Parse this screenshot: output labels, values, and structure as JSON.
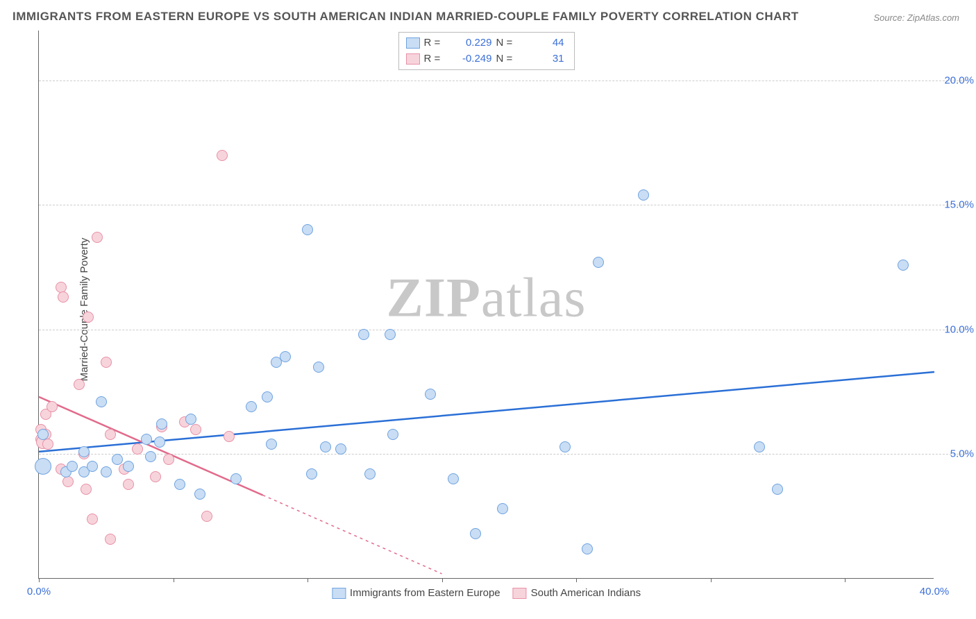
{
  "title": "IMMIGRANTS FROM EASTERN EUROPE VS SOUTH AMERICAN INDIAN MARRIED-COUPLE FAMILY POVERTY CORRELATION CHART",
  "source": "Source: ZipAtlas.com",
  "ylabel": "Married-Couple Family Poverty",
  "watermark_a": "ZIP",
  "watermark_b": "atlas",
  "chart": {
    "type": "scatter",
    "background_color": "#ffffff",
    "grid_color": "#cccccc",
    "axis_color": "#666666",
    "tick_label_color": "#3b6fd8",
    "xlim": [
      0,
      40
    ],
    "ylim": [
      0,
      22
    ],
    "xticks": [
      {
        "x": 0,
        "label": "0.0%"
      },
      {
        "x": 40,
        "label": "40.0%"
      }
    ],
    "xtick_marks": [
      0,
      6,
      12,
      18,
      24,
      30,
      36
    ],
    "yticks": [
      {
        "y": 5,
        "label": "5.0%"
      },
      {
        "y": 10,
        "label": "10.0%"
      },
      {
        "y": 15,
        "label": "15.0%"
      },
      {
        "y": 20,
        "label": "20.0%"
      }
    ],
    "series": [
      {
        "name": "Immigrants from Eastern Europe",
        "fill": "#c9ddf4",
        "stroke": "#6fa3e0",
        "marker_size": 16,
        "r_value": "0.229",
        "n_value": "44",
        "trend": {
          "x1": 0,
          "y1": 5.1,
          "x2": 40,
          "y2": 8.3,
          "color": "#2a6fd6",
          "dash_from_x": null
        },
        "points": [
          {
            "x": 0.2,
            "y": 4.5,
            "s": 24
          },
          {
            "x": 0.2,
            "y": 5.8
          },
          {
            "x": 1.2,
            "y": 4.3
          },
          {
            "x": 1.5,
            "y": 4.5
          },
          {
            "x": 2.0,
            "y": 4.3
          },
          {
            "x": 2.0,
            "y": 5.1
          },
          {
            "x": 2.4,
            "y": 4.5
          },
          {
            "x": 2.8,
            "y": 7.1
          },
          {
            "x": 3.0,
            "y": 4.3
          },
          {
            "x": 3.5,
            "y": 4.8
          },
          {
            "x": 4.0,
            "y": 4.5
          },
          {
            "x": 4.8,
            "y": 5.6
          },
          {
            "x": 5.0,
            "y": 4.9
          },
          {
            "x": 5.4,
            "y": 5.5
          },
          {
            "x": 5.5,
            "y": 6.2
          },
          {
            "x": 6.3,
            "y": 3.8
          },
          {
            "x": 6.8,
            "y": 6.4
          },
          {
            "x": 7.2,
            "y": 3.4
          },
          {
            "x": 8.8,
            "y": 4.0
          },
          {
            "x": 9.5,
            "y": 6.9
          },
          {
            "x": 10.2,
            "y": 7.3
          },
          {
            "x": 10.4,
            "y": 5.4
          },
          {
            "x": 10.6,
            "y": 8.7
          },
          {
            "x": 11.0,
            "y": 8.9
          },
          {
            "x": 12.0,
            "y": 14.0
          },
          {
            "x": 12.2,
            "y": 4.2
          },
          {
            "x": 12.5,
            "y": 8.5
          },
          {
            "x": 12.8,
            "y": 5.3
          },
          {
            "x": 13.5,
            "y": 5.2
          },
          {
            "x": 14.5,
            "y": 9.8
          },
          {
            "x": 14.8,
            "y": 4.2
          },
          {
            "x": 15.7,
            "y": 9.8
          },
          {
            "x": 15.8,
            "y": 5.8
          },
          {
            "x": 17.5,
            "y": 7.4
          },
          {
            "x": 18.5,
            "y": 4.0
          },
          {
            "x": 19.5,
            "y": 1.8
          },
          {
            "x": 20.7,
            "y": 2.8
          },
          {
            "x": 23.5,
            "y": 5.3
          },
          {
            "x": 24.5,
            "y": 1.2
          },
          {
            "x": 25.0,
            "y": 12.7
          },
          {
            "x": 27.0,
            "y": 15.4
          },
          {
            "x": 32.2,
            "y": 5.3
          },
          {
            "x": 33.0,
            "y": 3.6
          },
          {
            "x": 38.6,
            "y": 12.6
          }
        ]
      },
      {
        "name": "South American Indians",
        "fill": "#f7d4dc",
        "stroke": "#e890a6",
        "marker_size": 16,
        "r_value": "-0.249",
        "n_value": "31",
        "trend": {
          "x1": 0,
          "y1": 7.3,
          "x2": 18,
          "y2": 0.2,
          "color": "#e26a8b",
          "dash_from_x": 10
        },
        "points": [
          {
            "x": 0.1,
            "y": 5.6
          },
          {
            "x": 0.1,
            "y": 6.0
          },
          {
            "x": 0.2,
            "y": 5.5,
            "s": 20
          },
          {
            "x": 0.3,
            "y": 6.6
          },
          {
            "x": 0.3,
            "y": 5.8
          },
          {
            "x": 0.4,
            "y": 5.4
          },
          {
            "x": 0.6,
            "y": 6.9
          },
          {
            "x": 1.0,
            "y": 4.4
          },
          {
            "x": 1.0,
            "y": 11.7
          },
          {
            "x": 1.1,
            "y": 11.3
          },
          {
            "x": 1.3,
            "y": 3.9
          },
          {
            "x": 1.8,
            "y": 7.8
          },
          {
            "x": 2.0,
            "y": 5.0
          },
          {
            "x": 2.1,
            "y": 3.6
          },
          {
            "x": 2.2,
            "y": 10.5
          },
          {
            "x": 2.4,
            "y": 2.4
          },
          {
            "x": 2.6,
            "y": 13.7
          },
          {
            "x": 3.0,
            "y": 8.7
          },
          {
            "x": 3.2,
            "y": 5.8
          },
          {
            "x": 3.2,
            "y": 1.6
          },
          {
            "x": 3.8,
            "y": 4.4
          },
          {
            "x": 4.0,
            "y": 3.8
          },
          {
            "x": 4.4,
            "y": 5.2
          },
          {
            "x": 5.2,
            "y": 4.1
          },
          {
            "x": 5.5,
            "y": 6.1
          },
          {
            "x": 5.8,
            "y": 4.8
          },
          {
            "x": 6.5,
            "y": 6.3
          },
          {
            "x": 7.0,
            "y": 6.0
          },
          {
            "x": 7.5,
            "y": 2.5
          },
          {
            "x": 8.2,
            "y": 17.0
          },
          {
            "x": 8.5,
            "y": 5.7
          }
        ]
      }
    ],
    "legend_bottom_labels": {
      "a": "Immigrants from Eastern Europe",
      "b": "South American Indians"
    },
    "legend_top": {
      "r_label": "R =",
      "n_label": "N ="
    }
  }
}
